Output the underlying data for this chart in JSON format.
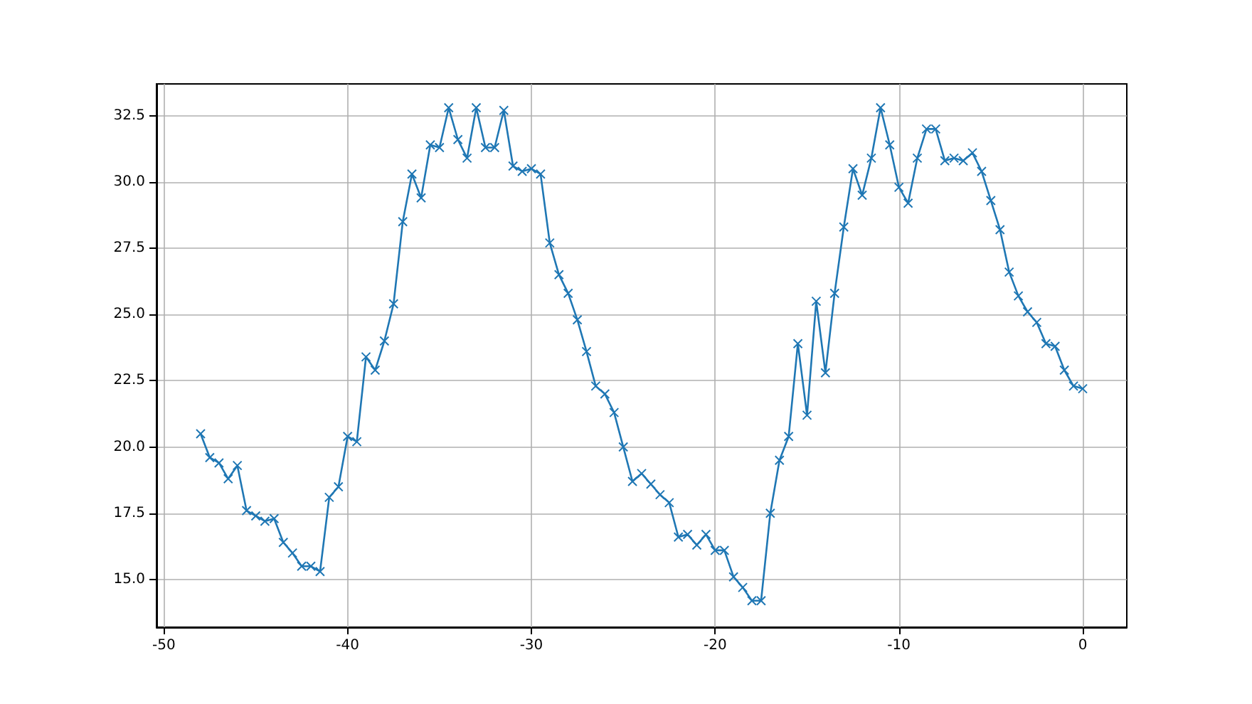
{
  "chart_data": {
    "type": "line",
    "x": [
      -48,
      -47.5,
      -47,
      -46.5,
      -46,
      -45.5,
      -45,
      -44.5,
      -44,
      -43.5,
      -43,
      -42.5,
      -42,
      -41.5,
      -41,
      -40.5,
      -40,
      -39.5,
      -39,
      -38.5,
      -38,
      -37.5,
      -37,
      -36.5,
      -36,
      -35.5,
      -35,
      -34.5,
      -34,
      -33.5,
      -33,
      -32.5,
      -32,
      -31.5,
      -31,
      -30.5,
      -30,
      -29.5,
      -29,
      -28.5,
      -28,
      -27.5,
      -27,
      -26.5,
      -26,
      -25.5,
      -25,
      -24.5,
      -24,
      -23.5,
      -23,
      -22.5,
      -22,
      -21.5,
      -21,
      -20.5,
      -20,
      -19.5,
      -19,
      -18.5,
      -18,
      -17.5,
      -17,
      -16.5,
      -16,
      -15.5,
      -15,
      -14.5,
      -14,
      -13.5,
      -13,
      -12.5,
      -12,
      -11.5,
      -11,
      -10.5,
      -10,
      -9.5,
      -9,
      -8.5,
      -8,
      -7.5,
      -7,
      -6.5,
      -6,
      -5.5,
      -5,
      -4.5,
      -4,
      -3.5,
      -3,
      -2.5,
      -2,
      -1.5,
      -1,
      -0.5,
      0
    ],
    "series": [
      {
        "color": "#1f77b4",
        "values": [
          20.5,
          19.6,
          19.4,
          18.8,
          19.3,
          17.6,
          17.4,
          17.2,
          17.3,
          16.4,
          16.0,
          15.5,
          15.5,
          15.3,
          18.1,
          18.5,
          20.4,
          20.2,
          23.4,
          22.9,
          24.0,
          25.4,
          28.5,
          30.3,
          29.4,
          31.4,
          31.3,
          32.8,
          31.6,
          30.9,
          32.8,
          31.3,
          31.3,
          32.7,
          30.6,
          30.4,
          30.5,
          30.3,
          27.7,
          26.5,
          25.8,
          24.8,
          23.6,
          22.3,
          22.0,
          21.3,
          20.0,
          18.7,
          19.0,
          18.6,
          18.2,
          17.9,
          16.6,
          16.7,
          16.3,
          16.7,
          16.1,
          16.1,
          15.1,
          14.7,
          14.2,
          14.2,
          17.5,
          19.5,
          20.4,
          23.9,
          21.2,
          25.5,
          22.8,
          25.8,
          28.3,
          30.5,
          29.5,
          30.9,
          32.8,
          31.4,
          29.8,
          29.2,
          30.9,
          32.0,
          32.0,
          30.8,
          30.9,
          30.8,
          31.1,
          30.4,
          29.3,
          28.2,
          26.6,
          25.7,
          25.1,
          24.7,
          23.9,
          23.8,
          22.9,
          22.3,
          22.2
        ]
      }
    ],
    "xlim": [
      -50.4,
      2.4
    ],
    "xticks": [
      -50,
      -40,
      -30,
      -20,
      -10,
      0
    ],
    "ylim": [
      13.2,
      33.7
    ],
    "yticks": [
      {
        "value": 15,
        "label": "15.0"
      },
      17.5,
      {
        "value": 20,
        "label": "20.0"
      },
      22.5,
      {
        "value": 25,
        "label": "25.0"
      },
      27.5,
      {
        "value": 30,
        "label": "30.0"
      },
      32.5
    ],
    "grid": true,
    "marker": "cross",
    "line_style": "solid"
  }
}
